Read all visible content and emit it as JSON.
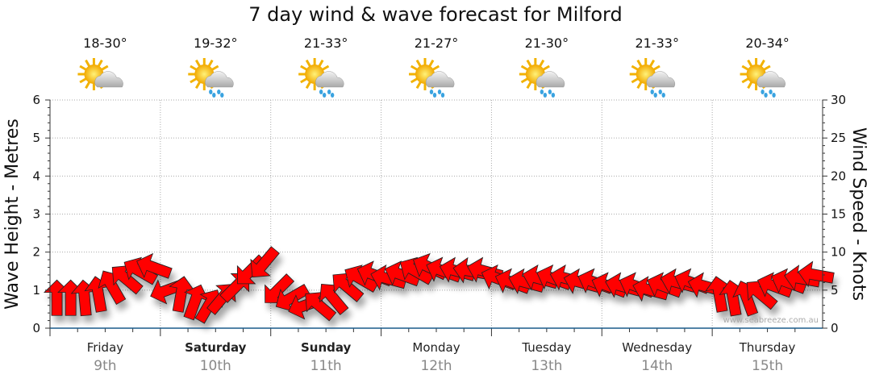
{
  "title": "7 day wind & wave forecast for Milford",
  "watermark": "www.seabreeze.com.au",
  "days": [
    {
      "name": "Friday",
      "date": "9th",
      "temp": "18-30°",
      "icon": "sun-cloud-icon",
      "bold": false
    },
    {
      "name": "Saturday",
      "date": "10th",
      "temp": "19-32°",
      "icon": "sun-cloud-rain-icon",
      "bold": true
    },
    {
      "name": "Sunday",
      "date": "11th",
      "temp": "21-33°",
      "icon": "sun-cloud-rain-icon",
      "bold": true
    },
    {
      "name": "Monday",
      "date": "12th",
      "temp": "21-27°",
      "icon": "sun-cloud-rain-icon",
      "bold": false
    },
    {
      "name": "Tuesday",
      "date": "13th",
      "temp": "21-30°",
      "icon": "sun-cloud-rain-icon",
      "bold": false
    },
    {
      "name": "Wednesday",
      "date": "14th",
      "temp": "21-33°",
      "icon": "sun-cloud-rain-icon",
      "bold": false
    },
    {
      "name": "Thursday",
      "date": "15th",
      "temp": "20-34°",
      "icon": "sun-cloud-rain-icon",
      "bold": false
    }
  ],
  "chart_data": {
    "type": "scatter",
    "title": "7 day wind & wave forecast for Milford",
    "ylabel": "Wave Height - Metres",
    "y2label": "Wind Speed - Knots",
    "ylim": [
      0,
      6
    ],
    "y2lim": [
      0,
      30
    ],
    "yticks": [
      "0",
      "1",
      "2",
      "3",
      "4",
      "5",
      "6"
    ],
    "y2ticks": [
      "0",
      "5",
      "10",
      "15",
      "20",
      "25",
      "30"
    ],
    "points_per_day": 8,
    "wave_height": [
      0.8,
      0.8,
      0.8,
      0.9,
      1.1,
      1.3,
      1.5,
      1.6,
      1.0,
      0.9,
      0.7,
      0.6,
      0.8,
      1.1,
      1.5,
      1.7,
      1.0,
      0.8,
      0.6,
      0.6,
      0.8,
      1.1,
      1.3,
      1.4,
      1.3,
      1.4,
      1.5,
      1.6,
      1.5,
      1.5,
      1.5,
      1.5,
      1.3,
      1.2,
      1.2,
      1.3,
      1.3,
      1.3,
      1.2,
      1.2,
      1.1,
      1.1,
      1.1,
      1.0,
      1.1,
      1.2,
      1.2,
      1.1,
      0.9,
      0.8,
      0.8,
      0.9,
      1.1,
      1.2,
      1.3,
      1.4
    ],
    "wind_direction_screen_deg": [
      -90,
      -90,
      -95,
      -100,
      -120,
      -140,
      -150,
      -160,
      160,
      -80,
      -70,
      -60,
      -50,
      -45,
      135,
      130,
      135,
      150,
      160,
      -140,
      -130,
      -140,
      -150,
      -160,
      -165,
      -160,
      -150,
      -155,
      -160,
      -165,
      -170,
      -165,
      -160,
      -160,
      -165,
      -165,
      -160,
      -165,
      -165,
      -160,
      -160,
      -165,
      -160,
      -165,
      -160,
      -165,
      -160,
      -165,
      -100,
      -100,
      -110,
      -140,
      -160,
      -160,
      -170,
      -170
    ],
    "arrow_color": "#ff0000"
  }
}
